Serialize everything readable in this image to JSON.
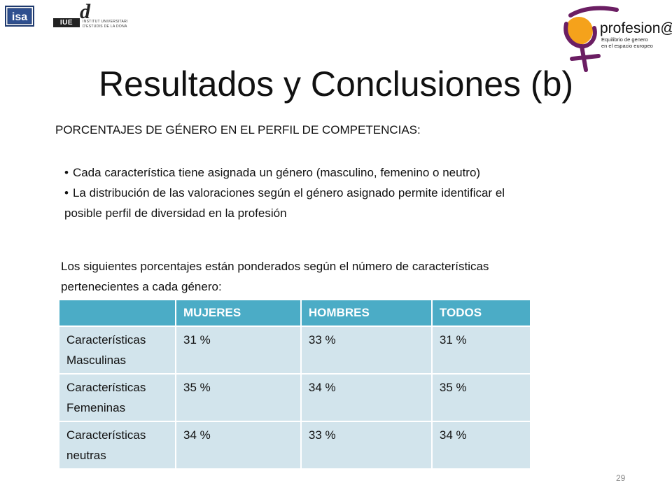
{
  "logos": {
    "isa": "isa",
    "iue_badge": "IUE",
    "iue_letter": "d",
    "iue_line1": "INSTITUT UNIVERSITARI",
    "iue_line2": "D'ESTUDIS DE LA DONA",
    "profesional_word": "profesion@l",
    "profesional_sub1": "Equilibrio de genero",
    "profesional_sub2": "en el espacio europeo",
    "colors": {
      "orange": "#f5a21b",
      "purple": "#6b1e63",
      "cyan": "#4bacc6",
      "cell": "#d2e4ec"
    }
  },
  "title": "Resultados y Conclusiones (b)",
  "heading": "PORCENTAJES DE GÉNERO EN EL PERFIL DE COMPETENCIAS:",
  "bullets": [
    "Cada característica tiene asignada un género (masculino, femenino o neutro)",
    "La distribución de las valoraciones según el género asignado permite identificar el posible perfil de diversidad en la profesión"
  ],
  "note": "Los siguientes porcentajes están ponderados según el número de características pertenecientes a cada género:",
  "table": {
    "headers": [
      "",
      "MUJERES",
      "HOMBRES",
      "TODOS"
    ],
    "rows": [
      [
        "Características Masculinas",
        "31 %",
        "33 %",
        "31 %"
      ],
      [
        "Características Femeninas",
        "35 %",
        "34 %",
        "35 %"
      ],
      [
        "Características neutras",
        "34 %",
        "33 %",
        "34 %"
      ]
    ]
  },
  "page_number": "29"
}
